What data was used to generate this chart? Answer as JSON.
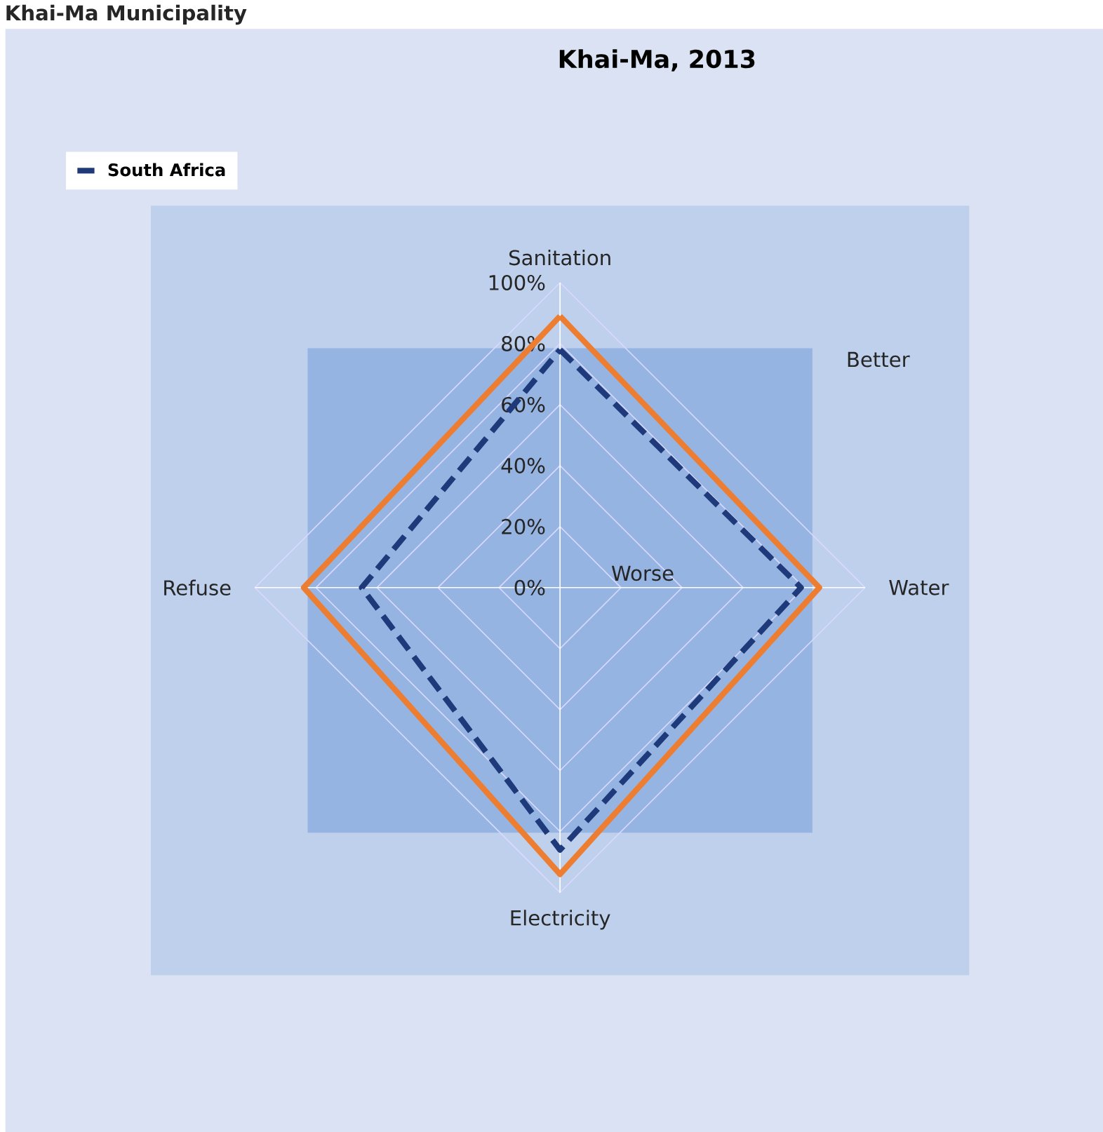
{
  "chart_data": {
    "type": "radar",
    "title": "Khai-Ma, 2013",
    "categories": [
      "Sanitation",
      "Water",
      "Electricity",
      "Refuse"
    ],
    "series": [
      {
        "color": "#ed7d31",
        "values": [
          89,
          85,
          94,
          84
        ],
        "line_style": "solid"
      },
      {
        "name": "South Africa",
        "color": "#1f3a7a",
        "values": [
          78,
          79,
          86,
          65
        ],
        "line_style": "dashed"
      }
    ],
    "ylim": [
      0,
      100
    ],
    "yticks": [
      {
        "value": 0,
        "label": "0%"
      },
      {
        "value": 20,
        "label": "20%"
      },
      {
        "value": 40,
        "label": "40%"
      },
      {
        "value": 60,
        "label": "60%"
      },
      {
        "value": 80,
        "label": "80%"
      },
      {
        "value": 100,
        "label": "100%"
      }
    ],
    "grid": true,
    "legend": "top left",
    "marker": "none",
    "annotations": [
      "Khai-Ma Municipality",
      "Better",
      "Worse"
    ]
  }
}
